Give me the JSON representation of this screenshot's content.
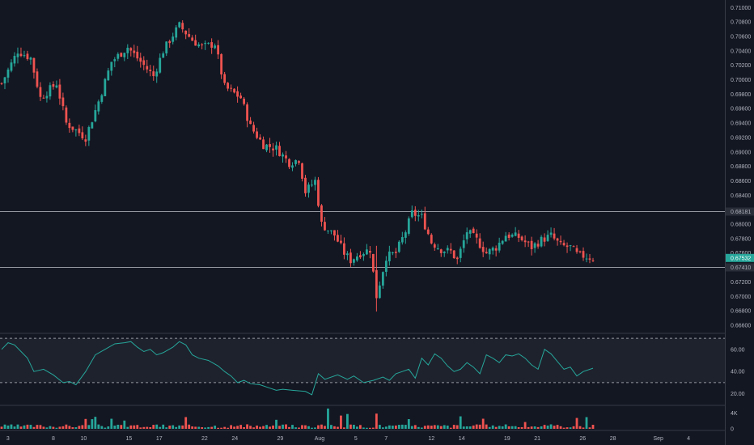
{
  "colors": {
    "background": "#131722",
    "up": "#26a69a",
    "down": "#ef5350",
    "grid_line": "#363a45",
    "hline": "#9598a1",
    "rsi_line": "#26a69a",
    "rsi_band": "#1e222d",
    "text": "#b2b5be",
    "price_badge": "#26a69a"
  },
  "chart_data": [
    {
      "type": "candlestick",
      "title": "",
      "y_ticks": [
        "0.71000",
        "0.70800",
        "0.70600",
        "0.70400",
        "0.70200",
        "0.70000",
        "0.69800",
        "0.69600",
        "0.69400",
        "0.69200",
        "0.69000",
        "0.68800",
        "0.68600",
        "0.68400",
        "0.68200",
        "0.68000",
        "0.67800",
        "0.67600",
        "0.67400",
        "0.67200",
        "0.67000",
        "0.66800",
        "0.66600"
      ],
      "ylim": [
        0.66555,
        0.71048
      ],
      "horizontal_levels": [
        {
          "value": 0.68181,
          "label": "0.68181"
        },
        {
          "value": 0.6741,
          "label": "0.67410"
        }
      ],
      "last_price": {
        "value": 0.67532,
        "label": "0.67532"
      },
      "x_tick_labels": [
        "3",
        "8",
        "10",
        "15",
        "17",
        "22",
        "24",
        "29",
        "Aug",
        "5",
        "7",
        "12",
        "14",
        "19",
        "21",
        "26",
        "28",
        "Sep",
        "4"
      ],
      "close_path": [
        [
          0,
          0.6995
        ],
        [
          5,
          0.704
        ],
        [
          9,
          0.703
        ],
        [
          12,
          0.6975
        ],
        [
          17,
          0.6995
        ],
        [
          20,
          0.694
        ],
        [
          26,
          0.692
        ],
        [
          30,
          0.697
        ],
        [
          34,
          0.7025
        ],
        [
          39,
          0.7045
        ],
        [
          44,
          0.702
        ],
        [
          47,
          0.7005
        ],
        [
          50,
          0.704
        ],
        [
          53,
          0.7062
        ],
        [
          55,
          0.7075
        ],
        [
          59,
          0.7055
        ],
        [
          62,
          0.7045
        ],
        [
          66,
          0.705
        ],
        [
          69,
          0.699
        ],
        [
          74,
          0.6975
        ],
        [
          77,
          0.6935
        ],
        [
          81,
          0.691
        ],
        [
          85,
          0.6905
        ],
        [
          89,
          0.6885
        ],
        [
          92,
          0.689
        ],
        [
          94,
          0.6845
        ],
        [
          97,
          0.686
        ],
        [
          99,
          0.68
        ],
        [
          103,
          0.6785
        ],
        [
          106,
          0.676
        ],
        [
          108,
          0.675
        ],
        [
          111,
          0.676
        ],
        [
          114,
          0.6765
        ],
        [
          116,
          0.67
        ],
        [
          119,
          0.6755
        ],
        [
          122,
          0.676
        ],
        [
          125,
          0.679
        ],
        [
          127,
          0.6815
        ],
        [
          130,
          0.681
        ],
        [
          133,
          0.6775
        ],
        [
          136,
          0.6765
        ],
        [
          139,
          0.6762
        ],
        [
          141,
          0.675
        ],
        [
          144,
          0.679
        ],
        [
          147,
          0.6778
        ],
        [
          150,
          0.676
        ],
        [
          153,
          0.6768
        ],
        [
          156,
          0.6785
        ],
        [
          160,
          0.6782
        ],
        [
          164,
          0.6768
        ],
        [
          167,
          0.6778
        ],
        [
          170,
          0.6784
        ],
        [
          173,
          0.677
        ],
        [
          176,
          0.6768
        ],
        [
          178,
          0.6758
        ],
        [
          181,
          0.6755
        ],
        [
          183,
          0.6753
        ]
      ]
    },
    {
      "type": "line",
      "title": "",
      "y_ticks": [
        "60.00",
        "40.00",
        "20.00"
      ],
      "ylim": [
        13.1,
        73.0
      ],
      "reference_levels": [
        70,
        30
      ],
      "series": [
        {
          "points": [
            [
              0,
              60
            ],
            [
              2,
              66
            ],
            [
              4,
              64
            ],
            [
              6,
              58
            ],
            [
              8,
              52
            ],
            [
              10,
              40
            ],
            [
              13,
              42
            ],
            [
              16,
              37
            ],
            [
              19,
              30
            ],
            [
              21,
              31
            ],
            [
              23,
              28
            ],
            [
              26,
              40
            ],
            [
              29,
              55
            ],
            [
              32,
              60
            ],
            [
              35,
              65
            ],
            [
              38,
              66
            ],
            [
              40,
              67
            ],
            [
              42,
              62
            ],
            [
              44,
              58
            ],
            [
              46,
              60
            ],
            [
              48,
              55
            ],
            [
              50,
              57
            ],
            [
              53,
              62
            ],
            [
              55,
              67
            ],
            [
              57,
              64
            ],
            [
              59,
              55
            ],
            [
              61,
              52
            ],
            [
              64,
              50
            ],
            [
              67,
              45
            ],
            [
              69,
              40
            ],
            [
              71,
              36
            ],
            [
              73,
              30
            ],
            [
              75,
              32
            ],
            [
              77,
              29
            ],
            [
              80,
              28
            ],
            [
              83,
              25
            ],
            [
              85,
              23
            ],
            [
              87,
              24
            ],
            [
              90,
              23
            ],
            [
              94,
              22
            ],
            [
              96,
              19
            ],
            [
              98,
              38
            ],
            [
              100,
              33
            ],
            [
              104,
              37
            ],
            [
              107,
              33
            ],
            [
              109,
              36
            ],
            [
              112,
              30
            ],
            [
              115,
              32
            ],
            [
              118,
              35
            ],
            [
              120,
              32
            ],
            [
              122,
              38
            ],
            [
              124,
              40
            ],
            [
              126,
              42
            ],
            [
              128,
              34
            ],
            [
              130,
              52
            ],
            [
              132,
              46
            ],
            [
              134,
              56
            ],
            [
              136,
              52
            ],
            [
              138,
              45
            ],
            [
              140,
              40
            ],
            [
              142,
              42
            ],
            [
              144,
              48
            ],
            [
              146,
              44
            ],
            [
              148,
              38
            ],
            [
              150,
              55
            ],
            [
              152,
              52
            ],
            [
              154,
              48
            ],
            [
              156,
              55
            ],
            [
              158,
              54
            ],
            [
              160,
              56
            ],
            [
              162,
              52
            ],
            [
              164,
              46
            ],
            [
              166,
              42
            ],
            [
              168,
              60
            ],
            [
              170,
              56
            ],
            [
              172,
              49
            ],
            [
              174,
              42
            ],
            [
              176,
              44
            ],
            [
              178,
              36
            ],
            [
              180,
              40
            ],
            [
              183,
              43
            ]
          ]
        }
      ]
    },
    {
      "type": "bar",
      "title": "",
      "y_ticks": [
        "4K",
        "0"
      ],
      "ylim": [
        0,
        5600
      ]
    }
  ]
}
